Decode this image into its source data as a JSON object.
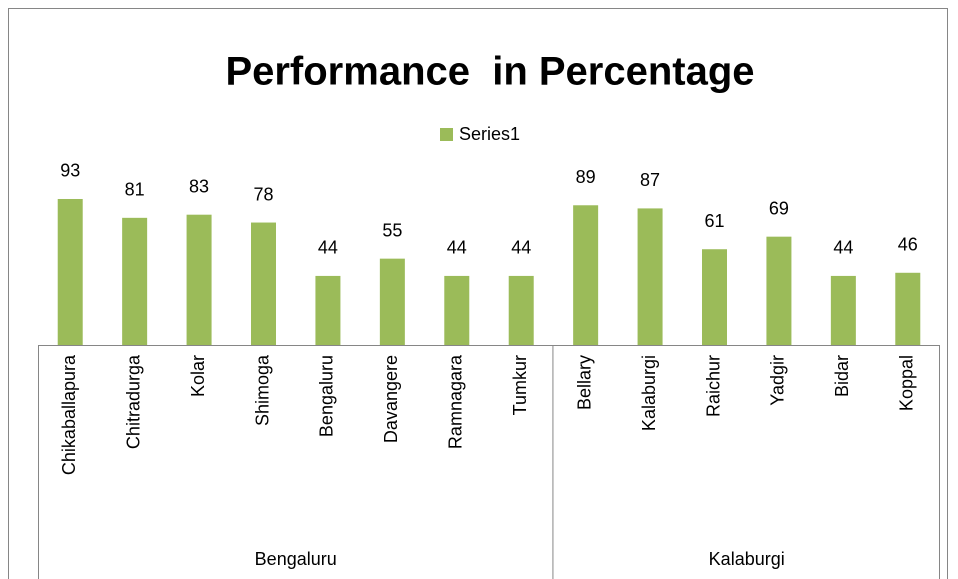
{
  "chart_data": {
    "type": "bar",
    "title": "Performance  in Percentage",
    "category_groups": [
      {
        "name": "Bengaluru",
        "categories": [
          "Chikaballapura",
          "Chitradurga",
          "Kolar",
          "Shimoga",
          "Bengaluru",
          "Davangere",
          "Ramnagara",
          "Tumkur"
        ]
      },
      {
        "name": "Kalaburgi",
        "categories": [
          "Bellary",
          "Kalaburgi",
          "Raichur",
          "Yadgir",
          "Bidar",
          "Koppal"
        ]
      }
    ],
    "series": [
      {
        "name": "Series1",
        "color": "#9bbb59",
        "values": [
          93,
          81,
          83,
          78,
          44,
          55,
          44,
          44,
          89,
          87,
          61,
          69,
          44,
          46
        ]
      }
    ]
  }
}
